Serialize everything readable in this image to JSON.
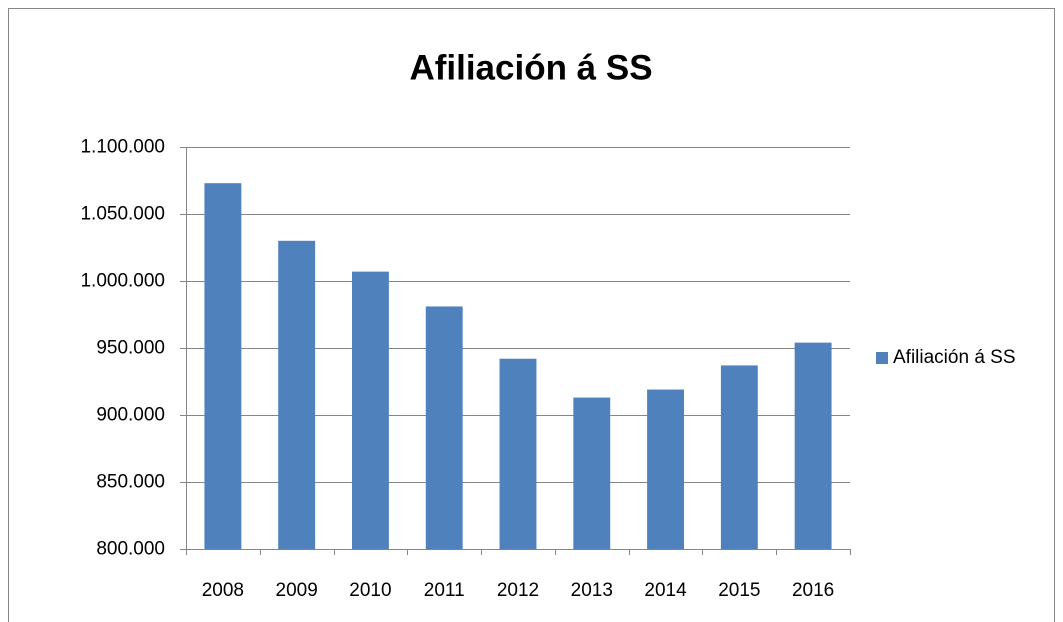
{
  "chart_data": {
    "type": "bar",
    "title": "Afiliación á SS",
    "categories": [
      "2008",
      "2009",
      "2010",
      "2011",
      "2012",
      "2013",
      "2014",
      "2015",
      "2016"
    ],
    "series": [
      {
        "name": "Afiliación á SS",
        "color": "#4f81bd",
        "values": [
          1073000,
          1030000,
          1007000,
          981000,
          942000,
          913000,
          919000,
          937000,
          954000
        ]
      }
    ],
    "ylim": [
      800000,
      1100000
    ],
    "yticks": [
      {
        "value": 800000,
        "label": "800.000"
      },
      {
        "value": 850000,
        "label": "850.000"
      },
      {
        "value": 900000,
        "label": "900.000"
      },
      {
        "value": 950000,
        "label": "950.000"
      },
      {
        "value": 1000000,
        "label": "1.000.000"
      },
      {
        "value": 1050000,
        "label": "1.050.000"
      },
      {
        "value": 1100000,
        "label": "1.100.000"
      }
    ],
    "grid": true,
    "legend": "right"
  }
}
